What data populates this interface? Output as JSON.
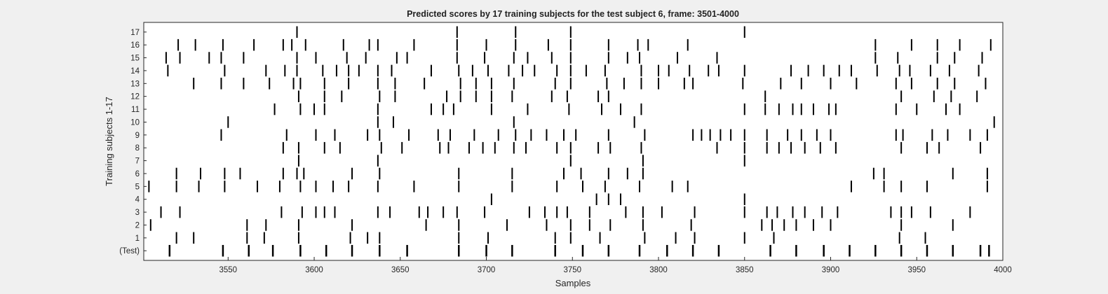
{
  "chart_data": {
    "type": "raster",
    "title": "Predicted scores by 17 training subjects for the test subject 6, frame: 3501-4000",
    "xlabel": "Samples",
    "ylabel": "Training subjects 1-17",
    "xlim": [
      3501,
      4000
    ],
    "xticks": [
      3550,
      3600,
      3650,
      3700,
      3750,
      3800,
      3850,
      3900,
      3950,
      4000
    ],
    "row_labels": [
      "(Test)",
      "1",
      "2",
      "3",
      "4",
      "5",
      "6",
      "7",
      "8",
      "9",
      "10",
      "11",
      "12",
      "13",
      "14",
      "15",
      "16",
      "17"
    ],
    "events": [
      {
        "row": "(Test)",
        "x": [
          3516,
          3547,
          3562,
          3576,
          3592,
          3607,
          3622,
          3638,
          3654,
          3684,
          3700,
          3715,
          3740,
          3756,
          3771,
          3789,
          3805,
          3820,
          3835,
          3865,
          3880,
          3896,
          3911,
          3926,
          3941,
          3956,
          3971,
          3987,
          3992
        ]
      },
      {
        "row": "1",
        "x": [
          3520,
          3530,
          3561,
          3571,
          3591,
          3621,
          3631,
          3638,
          3684,
          3701,
          3740,
          3749,
          3766,
          3792,
          3810,
          3821,
          3850,
          3867,
          3940,
          3955
        ]
      },
      {
        "row": "2",
        "x": [
          3505,
          3561,
          3572,
          3591,
          3622,
          3665,
          3684,
          3712,
          3735,
          3749,
          3760,
          3772,
          3791,
          3819,
          3860,
          3866,
          3873,
          3880,
          3890,
          3900,
          3941,
          3971
        ]
      },
      {
        "row": "3",
        "x": [
          3511,
          3522,
          3581,
          3593,
          3601,
          3606,
          3612,
          3637,
          3644,
          3661,
          3666,
          3675,
          3683,
          3699,
          3725,
          3734,
          3741,
          3747,
          3760,
          3781,
          3791,
          3802,
          3821,
          3850,
          3863,
          3869,
          3878,
          3885,
          3895,
          3904,
          3935,
          3941,
          3947,
          3958,
          3981
        ]
      },
      {
        "row": "4",
        "x": [
          3703,
          3764,
          3771,
          3778,
          3850
        ]
      },
      {
        "row": "5",
        "x": [
          3504,
          3520,
          3533,
          3548,
          3567,
          3580,
          3592,
          3601,
          3611,
          3620,
          3637,
          3658,
          3684,
          3715,
          3741,
          3756,
          3769,
          3789,
          3808,
          3817,
          3912,
          3931,
          3941,
          3956,
          3991
        ]
      },
      {
        "row": "6",
        "x": [
          3520,
          3534,
          3548,
          3557,
          3582,
          3590,
          3594,
          3622,
          3638,
          3684,
          3715,
          3745,
          3755,
          3771,
          3782,
          3791,
          3925,
          3931,
          3971,
          3991
        ]
      },
      {
        "row": "7",
        "x": [
          3591,
          3637,
          3749,
          3791,
          3850
        ]
      },
      {
        "row": "8",
        "x": [
          3582,
          3591,
          3606,
          3615,
          3639,
          3651,
          3673,
          3678,
          3690,
          3698,
          3705,
          3716,
          3723,
          3741,
          3749,
          3765,
          3772,
          3790,
          3834,
          3850,
          3863,
          3870,
          3877,
          3885,
          3894,
          3903,
          3941,
          3956,
          3963,
          3987
        ]
      },
      {
        "row": "9",
        "x": [
          3546,
          3584,
          3601,
          3612,
          3631,
          3638,
          3655,
          3672,
          3679,
          3693,
          3707,
          3717,
          3726,
          3735,
          3745,
          3752,
          3771,
          3792,
          3820,
          3825,
          3830,
          3836,
          3842,
          3850,
          3863,
          3875,
          3883,
          3892,
          3900,
          3938,
          3942,
          3959,
          3968,
          3981,
          3991
        ]
      },
      {
        "row": "10",
        "x": [
          3550,
          3637,
          3646,
          3716,
          3786,
          3995
        ]
      },
      {
        "row": "11",
        "x": [
          3577,
          3592,
          3600,
          3606,
          3637,
          3668,
          3675,
          3681,
          3703,
          3724,
          3748,
          3767,
          3778,
          3790,
          3850,
          3862,
          3870,
          3878,
          3883,
          3890,
          3899,
          3903,
          3938,
          3950,
          3967,
          3975
        ]
      },
      {
        "row": "12",
        "x": [
          3591,
          3606,
          3616,
          3638,
          3647,
          3677,
          3685,
          3694,
          3703,
          3715,
          3738,
          3747,
          3765,
          3771,
          3862,
          3941,
          3960,
          3970,
          3985
        ]
      },
      {
        "row": "13",
        "x": [
          3530,
          3546,
          3559,
          3574,
          3588,
          3592,
          3606,
          3620,
          3637,
          3647,
          3664,
          3685,
          3694,
          3703,
          3716,
          3740,
          3749,
          3770,
          3780,
          3790,
          3800,
          3815,
          3820,
          3849,
          3871,
          3883,
          3900,
          3915,
          3938,
          3947,
          3962,
          3972,
          3990
        ]
      },
      {
        "row": "14",
        "x": [
          3515,
          3548,
          3572,
          3583,
          3590,
          3605,
          3613,
          3620,
          3626,
          3637,
          3645,
          3668,
          3684,
          3692,
          3701,
          3713,
          3721,
          3728,
          3741,
          3749,
          3758,
          3769,
          3790,
          3800,
          3806,
          3818,
          3829,
          3835,
          3850,
          3877,
          3887,
          3896,
          3905,
          3912,
          3927,
          3940,
          3946,
          3958,
          3969,
          3986
        ]
      },
      {
        "row": "15",
        "x": [
          3514,
          3522,
          3539,
          3546,
          3559,
          3590,
          3601,
          3619,
          3630,
          3648,
          3654,
          3683,
          3699,
          3716,
          3724,
          3738,
          3749,
          3771,
          3782,
          3789,
          3811,
          3834,
          3926,
          3939,
          3962,
          3972,
          3988
        ]
      },
      {
        "row": "16",
        "x": [
          3521,
          3531,
          3547,
          3565,
          3582,
          3587,
          3595,
          3617,
          3632,
          3637,
          3658,
          3683,
          3700,
          3717,
          3736,
          3749,
          3771,
          3788,
          3794,
          3817,
          3926,
          3947,
          3962,
          3975,
          3993
        ]
      },
      {
        "row": "17",
        "x": [
          3590,
          3683,
          3717,
          3749,
          3850
        ]
      }
    ]
  }
}
